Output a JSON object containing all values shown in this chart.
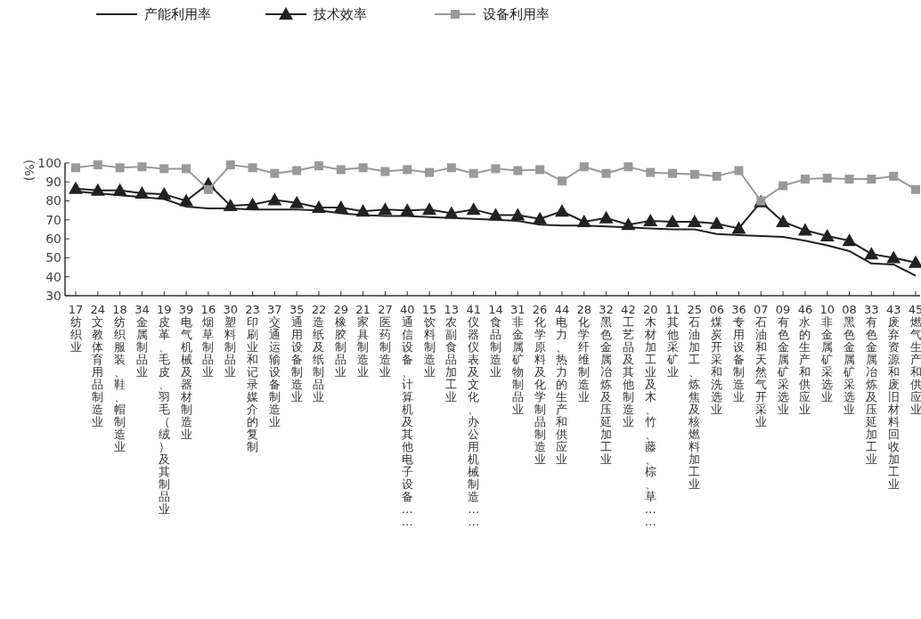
{
  "chart_data": {
    "type": "line",
    "ylabel": "(%)",
    "categories": [
      "17纺织业",
      "24文教体育用品制造业",
      "18纺织服装、鞋、帽制造业",
      "34金属制品业",
      "19皮革、毛皮、羽毛（绒）及其制品业",
      "39电气机械及器材制造业",
      "16烟草制品业",
      "30塑料制品业",
      "23印刷业和记录媒介的复制",
      "37交通运输设备制造业",
      "35通用设备制造业",
      "22造纸及纸制品业",
      "29橡胶制品业",
      "21家具制造业",
      "27医药制造业",
      "40通信设备、计算机及其他电子设备……",
      "15饮料制造业",
      "13农副食品加工业",
      "41仪器仪表及文化、办公用机械制造……",
      "14食品制造业",
      "31非金属矿物制品业",
      "26化学原料及化学制品制造业",
      "44电力、热力的生产和供应业",
      "28化学纤维制造业",
      "32黑色金属冶炼及压延加工业",
      "42工艺品及其他制造业",
      "20木材加工业及木、竹、藤、棕、草……",
      "11其他采矿业",
      "25石油加工、炼焦及核燃料加工业",
      "06煤炭开采和洗选业",
      "36专用设备制造业",
      "07石油和天然气开采业",
      "09有色金属矿采选业",
      "46水的生产和供应业",
      "10非金属矿采选业",
      "08黑色金属矿采选业",
      "33有色金属冶炼及压延加工业",
      "43废弃资源和废旧材料回收加工业",
      "45燃气生产和供应业"
    ],
    "series": [
      {
        "name": "产能利用率",
        "color": "#222222",
        "marker": "none",
        "values": [
          85,
          84,
          83,
          82,
          81,
          77,
          76,
          76,
          75.5,
          75.5,
          75.5,
          75,
          73.5,
          72.5,
          72,
          72,
          71.5,
          71,
          70.5,
          70,
          69.5,
          67.5,
          67,
          67,
          66.5,
          66,
          65.5,
          65,
          65,
          62.5,
          62,
          61.5,
          61,
          59,
          56.5,
          53.5,
          47,
          46.5,
          40.5
        ]
      },
      {
        "name": "技术效率",
        "color": "#222222",
        "marker": "triangle",
        "values": [
          86.5,
          85.5,
          85.5,
          84,
          83.5,
          80,
          89,
          77.5,
          78,
          80.5,
          79,
          76.5,
          76.5,
          74.5,
          75.5,
          75,
          75.5,
          73.5,
          75.5,
          72.5,
          72.5,
          70.5,
          74.5,
          69,
          71,
          67.5,
          69.5,
          69,
          69,
          68,
          65.5,
          79.5,
          69,
          64.5,
          61.5,
          59,
          52,
          50,
          47.5
        ]
      },
      {
        "name": "设备利用率",
        "color": "#999999",
        "marker": "square",
        "values": [
          97.5,
          99,
          97.5,
          98,
          97,
          97,
          86,
          99,
          97.5,
          94.5,
          96,
          98.5,
          96.5,
          97.5,
          95.5,
          96.5,
          95,
          97.5,
          94.5,
          97,
          96,
          96.5,
          90.5,
          98,
          94.5,
          98,
          95,
          94.5,
          94,
          93,
          96,
          80,
          88,
          91.5,
          92,
          91.5,
          91.5,
          93,
          86
        ]
      }
    ],
    "ylim": [
      30,
      100
    ],
    "yticks": [
      30,
      40,
      50,
      60,
      70,
      80,
      90,
      100
    ],
    "legend": "top",
    "grid": false
  }
}
